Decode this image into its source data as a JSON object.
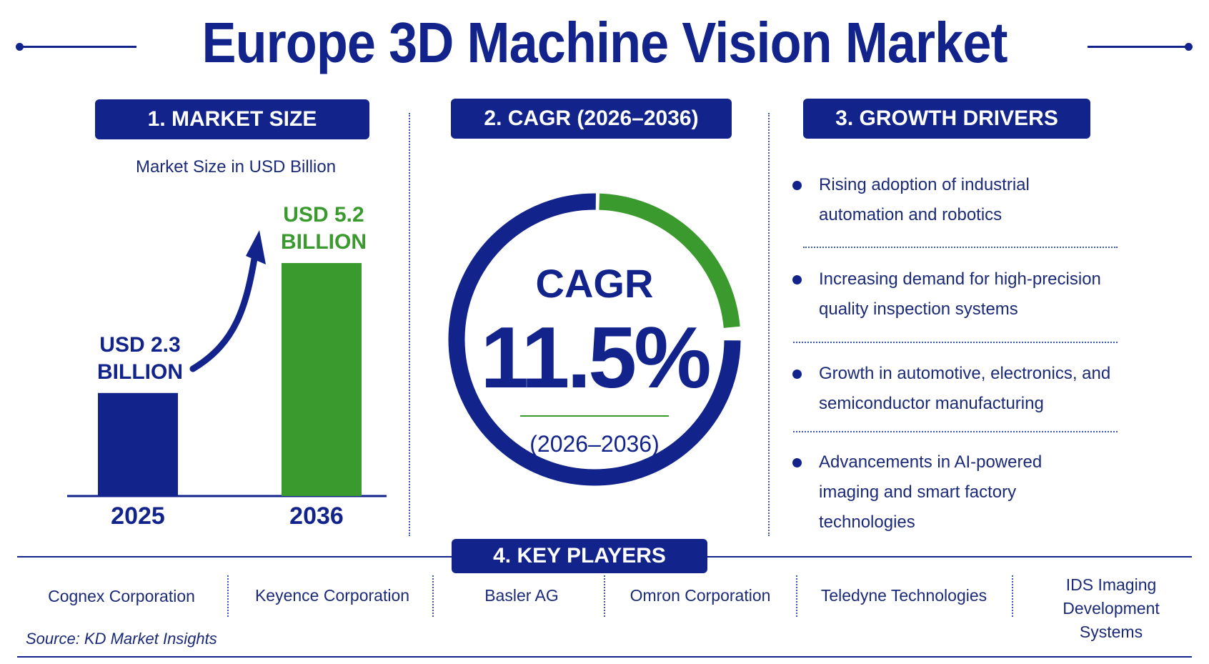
{
  "title": "Europe 3D Machine Vision Market",
  "colors": {
    "navy": "#12248c",
    "green": "#3a9a2e"
  },
  "market_size": {
    "heading": "1. MARKET SIZE",
    "subtitle": "Market Size in USD Billion",
    "label_2025": "USD 2.3\nBILLION",
    "label_2036": "USD 5.2\nBILLION"
  },
  "cagr": {
    "heading": "2. CAGR (2026–2036)",
    "label": "CAGR",
    "value": "11.5%",
    "period": "(2026–2036)",
    "green_arc_fraction": 0.24
  },
  "growth_drivers": {
    "heading": "3. GROWTH DRIVERS",
    "items": [
      "Rising adoption of industrial automation and robotics",
      "Increasing demand for high-precision quality inspection systems",
      "Growth in automotive, electronics, and semiconductor manufacturing",
      "Advancements in AI-powered imaging and smart factory technologies"
    ]
  },
  "key_players": {
    "heading": "4. KEY PLAYERS",
    "items": [
      "Cognex Corporation",
      "Keyence Corporation",
      "Basler AG",
      "Omron Corporation",
      "Teledyne Technologies",
      "IDS Imaging Development Systems"
    ]
  },
  "source": "Source: KD Market Insights",
  "chart_data": {
    "type": "bar",
    "categories": [
      "2025",
      "2036"
    ],
    "values": [
      2.3,
      5.2
    ],
    "value_labels": [
      "USD 2.3 BILLION",
      "USD 5.2 BILLION"
    ],
    "ylabel": "Market Size in USD Billion",
    "ylim": [
      0,
      5.2
    ],
    "colors": [
      "#12248c",
      "#3a9a2e"
    ],
    "grid": false
  }
}
